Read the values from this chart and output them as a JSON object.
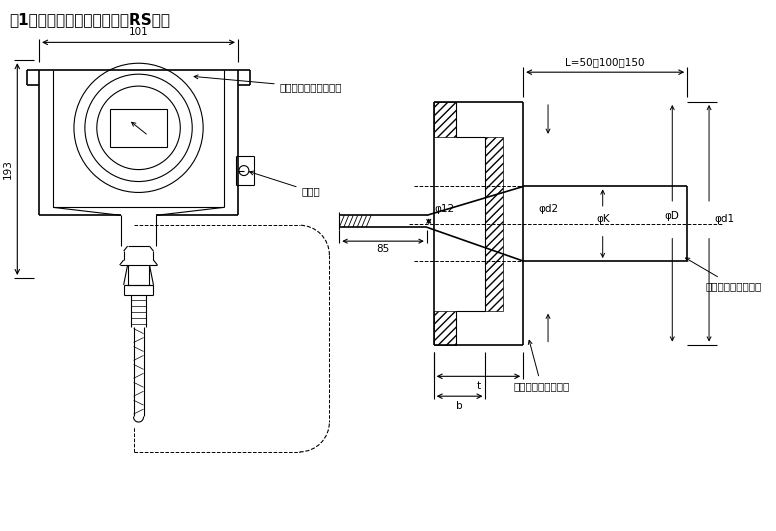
{
  "title": "图1基本型远传密封装置图（RS型）",
  "title_fontsize": 11,
  "bg_color": "#ffffff",
  "line_color": "#000000",
  "annotations": {
    "label_101": "101",
    "label_193": "193",
    "label_phi12": "φ12",
    "label_85": "85",
    "label_L": "L=50；100；150",
    "label_jiediduan": "接地端",
    "label_neicanxianshi": "内藏显示表（可选项）",
    "label_phid2": "φd2",
    "label_phiK": "φK",
    "label_phiD": "φD",
    "label_phid1": "φd1",
    "label_flat_box": "扁平式膜盒（可选）",
    "label_insert_box": "插入式膜盒（可选）",
    "label_t": "t",
    "label_b": "b"
  }
}
